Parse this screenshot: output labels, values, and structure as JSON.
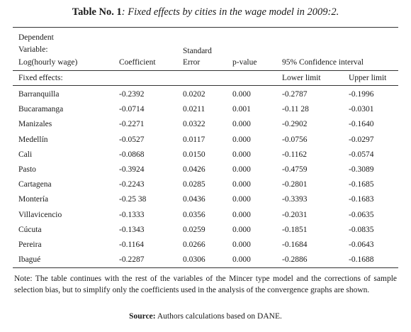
{
  "title": {
    "label": "Table No. 1",
    "text": ": Fixed effects by cities in the wage model in 2009:2."
  },
  "table": {
    "header": {
      "dependent": [
        "Dependent",
        "Variable:",
        "Log(hourly wage)"
      ],
      "coefficient": "Coefficient",
      "standard_error": [
        "Standard",
        "Error"
      ],
      "p_value": "p-value",
      "confidence_interval": "95% Confidence interval",
      "fixed_effects": "Fixed effects:",
      "lower_limit": "Lower limit",
      "upper_limit": "Upper limit"
    },
    "rows": [
      [
        "Barranquilla",
        "-0.2392",
        "0.0202",
        "0.000",
        "-0.2787",
        "-0.1996"
      ],
      [
        "Bucaramanga",
        "-0.0714",
        "0.0211",
        "0.001",
        "-0.11 28",
        "-0.0301"
      ],
      [
        "Manizales",
        "-0.2271",
        "0.0322",
        "0.000",
        "-0.2902",
        "-0.1640"
      ],
      [
        "Medellín",
        "-0.0527",
        "0.0117",
        "0.000",
        "-0.0756",
        "-0.0297"
      ],
      [
        "Cali",
        "-0.0868",
        "0.0150",
        "0.000",
        "-0.1162",
        "-0.0574"
      ],
      [
        "Pasto",
        "-0.3924",
        "0.0426",
        "0.000",
        "-0.4759",
        "-0.3089"
      ],
      [
        "Cartagena",
        "-0.2243",
        "0.0285",
        "0.000",
        "-0.2801",
        "-0.1685"
      ],
      [
        "Montería",
        "-0.25 38",
        "0.0436",
        "0.000",
        "-0.3393",
        "-0.1683"
      ],
      [
        "Villavicencio",
        "-0.1333",
        "0.0356",
        "0.000",
        "-0.2031",
        "-0.0635"
      ],
      [
        "Cúcuta",
        "-0.1343",
        "0.0259",
        "0.000",
        "-0.1851",
        "-0.0835"
      ],
      [
        "Pereira",
        "-0.1164",
        "0.0266",
        "0.000",
        "-0.1684",
        "-0.0643"
      ],
      [
        "Ibagué",
        "-0.2287",
        "0.0306",
        "0.000",
        "-0.2886",
        "-0.1688"
      ]
    ]
  },
  "note": "Note: The table continues with the rest of the variables of the Mincer type model and the corrections of sample selection bias, but to simplify only the coefficients used in the analysis of the convergence graphs are shown.",
  "source": {
    "label": "Source:",
    "text": " Authors calculations based on DANE."
  }
}
